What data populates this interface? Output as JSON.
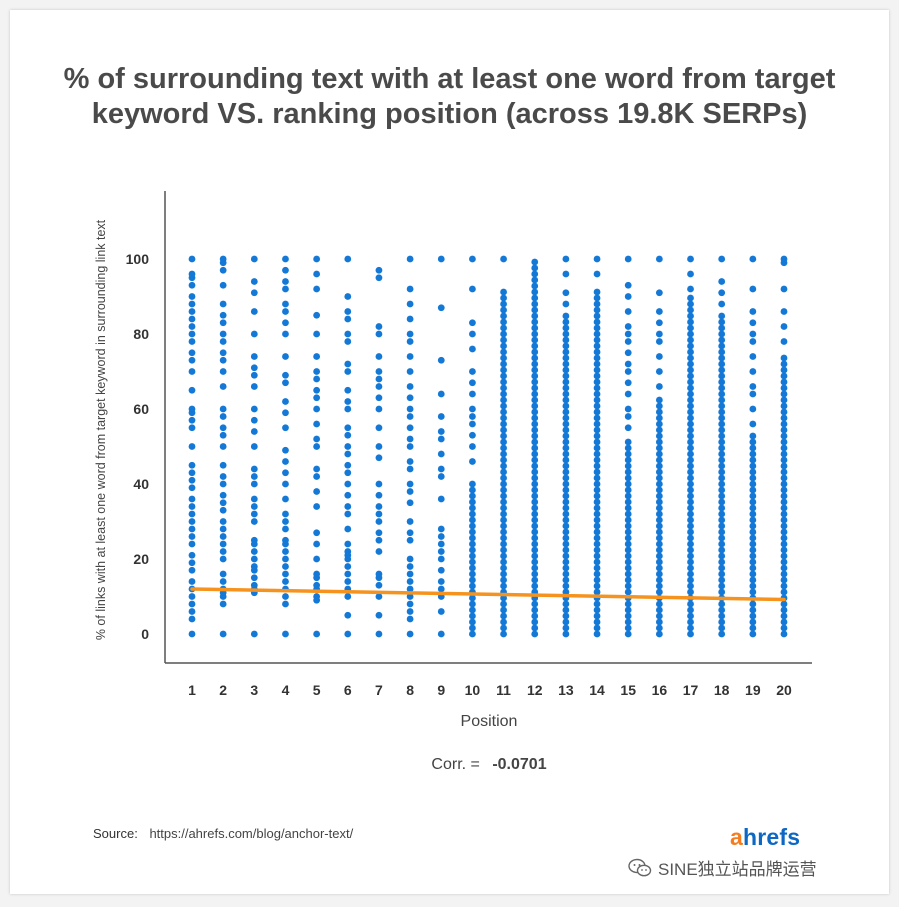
{
  "title_lines": [
    "% of surrounding text with at least one word from target",
    "keyword VS. ranking position (across 19.8K SERPs)"
  ],
  "footer": {
    "source_label": "Source:",
    "source_url": "https://ahrefs.com/blog/anchor-text/",
    "logo_first": "a",
    "logo_rest": "hrefs"
  },
  "watermark": "SINE独立站品牌运营",
  "colors": {
    "dot": "#1479d6",
    "trend": "#f5931e",
    "axis": "#555555"
  },
  "chart_data": {
    "type": "scatter",
    "xlabel": "Position",
    "ylabel": "% of links with at least one word from target keyword in surrounding link text",
    "xlim": [
      1,
      20
    ],
    "ylim": [
      0,
      100
    ],
    "x_ticks": [
      "1",
      "2",
      "3",
      "4",
      "5",
      "6",
      "7",
      "8",
      "9",
      "10",
      "11",
      "12",
      "13",
      "14",
      "15",
      "16",
      "17",
      "18",
      "19",
      "20"
    ],
    "y_ticks": [
      "0",
      "20",
      "40",
      "60",
      "80",
      "100"
    ],
    "correlation_label": "Corr. =",
    "correlation_value": "-0.0701",
    "trendline": {
      "x": [
        1,
        20
      ],
      "y": [
        12,
        9.2
      ]
    },
    "series": [
      {
        "x": 1,
        "y": [
          0,
          4,
          6,
          8,
          10,
          12,
          14,
          17,
          19,
          21,
          24,
          26,
          28,
          30,
          32,
          34,
          36,
          39,
          41,
          43,
          45,
          50,
          55,
          57,
          59,
          60,
          65,
          70,
          73,
          75,
          78,
          80,
          82,
          84,
          86,
          88,
          90,
          93,
          95,
          96,
          100
        ]
      },
      {
        "x": 2,
        "y": [
          0,
          8,
          10,
          11,
          12,
          14,
          16,
          20,
          22,
          24,
          26,
          28,
          30,
          33,
          35,
          37,
          40,
          42,
          45,
          50,
          53,
          55,
          58,
          60,
          66,
          70,
          73,
          75,
          78,
          80,
          83,
          85,
          88,
          93,
          97,
          99,
          100
        ]
      },
      {
        "x": 3,
        "y": [
          0,
          11,
          12,
          13,
          15,
          17,
          18,
          20,
          22,
          24,
          25,
          30,
          32,
          34,
          36,
          40,
          42,
          44,
          50,
          54,
          57,
          60,
          66,
          69,
          71,
          74,
          80,
          86,
          91,
          94,
          100
        ]
      },
      {
        "x": 4,
        "y": [
          0,
          8,
          10,
          12,
          14,
          16,
          18,
          20,
          22,
          24,
          25,
          28,
          30,
          32,
          36,
          40,
          43,
          46,
          49,
          55,
          59,
          62,
          67,
          69,
          74,
          80,
          83,
          86,
          88,
          92,
          94,
          97,
          100
        ]
      },
      {
        "x": 5,
        "y": [
          0,
          9,
          10,
          12,
          13,
          15,
          16,
          20,
          24,
          27,
          34,
          38,
          42,
          44,
          50,
          52,
          56,
          60,
          63,
          65,
          68,
          70,
          74,
          80,
          85,
          92,
          96,
          100
        ]
      },
      {
        "x": 6,
        "y": [
          0,
          5,
          10,
          12,
          14,
          16,
          18,
          20,
          21,
          22,
          24,
          28,
          32,
          34,
          37,
          40,
          43,
          45,
          48,
          50,
          53,
          55,
          60,
          62,
          65,
          70,
          72,
          78,
          80,
          84,
          86,
          90,
          100
        ]
      },
      {
        "x": 7,
        "y": [
          0,
          5,
          10,
          13,
          15,
          16,
          22,
          25,
          27,
          30,
          32,
          34,
          37,
          40,
          47,
          50,
          55,
          60,
          63,
          66,
          68,
          70,
          74,
          80,
          82,
          95,
          97
        ]
      },
      {
        "x": 8,
        "y": [
          0,
          4,
          6,
          8,
          10,
          12,
          14,
          16,
          18,
          20,
          25,
          27,
          30,
          35,
          38,
          40,
          44,
          46,
          50,
          52,
          55,
          58,
          60,
          63,
          66,
          70,
          74,
          78,
          80,
          84,
          88,
          92,
          100
        ]
      },
      {
        "x": 9,
        "y": [
          0,
          6,
          10,
          12,
          14,
          17,
          20,
          22,
          24,
          26,
          28,
          36,
          42,
          44,
          48,
          52,
          54,
          58,
          64,
          73,
          87,
          100
        ]
      },
      {
        "x": 10,
        "y": "dense",
        "dense_from": 0,
        "dense_to": 40,
        "extra": [
          46,
          50,
          53,
          56,
          58,
          60,
          64,
          67,
          70,
          76,
          80,
          83,
          92,
          100
        ]
      },
      {
        "x": 11,
        "y": "dense",
        "dense_from": 0,
        "dense_to": 92,
        "extra": [
          100
        ]
      },
      {
        "x": 12,
        "y": "dense",
        "dense_from": 0,
        "dense_to": 100,
        "extra": []
      },
      {
        "x": 13,
        "y": "dense",
        "dense_from": 0,
        "dense_to": 86,
        "extra": [
          88,
          91,
          96,
          100
        ]
      },
      {
        "x": 14,
        "y": "dense",
        "dense_from": 0,
        "dense_to": 92,
        "extra": [
          96,
          100
        ]
      },
      {
        "x": 15,
        "y": "dense",
        "dense_from": 0,
        "dense_to": 52,
        "extra": [
          55,
          58,
          60,
          64,
          67,
          70,
          72,
          75,
          78,
          80,
          82,
          86,
          90,
          93,
          100
        ]
      },
      {
        "x": 16,
        "y": "dense",
        "dense_from": 0,
        "dense_to": 63,
        "extra": [
          66,
          70,
          74,
          78,
          80,
          83,
          86,
          91,
          100
        ]
      },
      {
        "x": 17,
        "y": "dense",
        "dense_from": 0,
        "dense_to": 90,
        "extra": [
          92,
          96,
          100
        ]
      },
      {
        "x": 18,
        "y": "dense",
        "dense_from": 0,
        "dense_to": 86,
        "extra": [
          88,
          91,
          94,
          100
        ]
      },
      {
        "x": 19,
        "y": "dense",
        "dense_from": 0,
        "dense_to": 53,
        "extra": [
          56,
          60,
          64,
          66,
          70,
          74,
          78,
          80,
          83,
          86,
          92,
          100
        ]
      },
      {
        "x": 20,
        "y": "dense",
        "dense_from": 0,
        "dense_to": 75,
        "extra": [
          78,
          82,
          86,
          92,
          99,
          100
        ]
      }
    ]
  }
}
